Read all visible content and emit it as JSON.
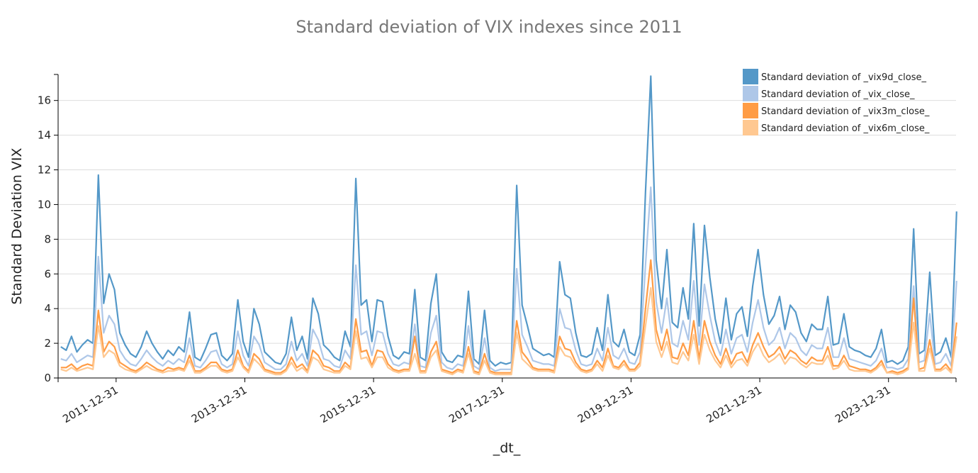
{
  "chart_data": {
    "type": "line",
    "title": "Standard deviation of VIX indexes since 2011",
    "xlabel": "_dt_",
    "ylabel": "Standard Deviation VIX",
    "x_start": "2011-01",
    "frequency": "monthly",
    "xlim_years": [
      2011.0,
      2024.95
    ],
    "ylim": [
      0,
      17.5
    ],
    "yticks": [
      0,
      2,
      4,
      6,
      8,
      10,
      12,
      14,
      16
    ],
    "xticks": [
      {
        "label": "2011-12-31",
        "year": 2012.0
      },
      {
        "label": "2013-12-31",
        "year": 2014.0
      },
      {
        "label": "2015-12-31",
        "year": 2016.0
      },
      {
        "label": "2017-12-31",
        "year": 2018.0
      },
      {
        "label": "2019-12-31",
        "year": 2020.0
      },
      {
        "label": "2021-12-31",
        "year": 2022.0
      },
      {
        "label": "2023-12-31",
        "year": 2024.0
      }
    ],
    "grid": true,
    "legend_position": "top-right",
    "series": [
      {
        "name": "Standard deviation of _vix9d_close_",
        "color": "#5498c8",
        "values": [
          1.8,
          1.6,
          2.4,
          1.5,
          1.9,
          2.2,
          2.0,
          11.7,
          4.3,
          6.0,
          5.1,
          2.6,
          1.9,
          1.4,
          1.2,
          1.8,
          2.7,
          2.0,
          1.5,
          1.1,
          1.6,
          1.3,
          1.8,
          1.5,
          3.8,
          1.2,
          1.0,
          1.7,
          2.5,
          2.6,
          1.3,
          1.0,
          1.4,
          4.5,
          2.1,
          1.2,
          4.0,
          3.1,
          1.5,
          1.2,
          0.9,
          0.8,
          1.4,
          3.5,
          1.6,
          2.4,
          1.1,
          4.6,
          3.7,
          1.9,
          1.6,
          1.2,
          1.0,
          2.7,
          1.8,
          11.5,
          4.2,
          4.5,
          2.1,
          4.5,
          4.4,
          2.4,
          1.3,
          1.1,
          1.5,
          1.4,
          5.1,
          1.2,
          1.0,
          4.3,
          6.0,
          1.5,
          1.0,
          0.9,
          1.3,
          1.2,
          5.0,
          1.1,
          0.8,
          3.9,
          1.0,
          0.7,
          0.9,
          0.8,
          0.9,
          11.1,
          4.2,
          3.0,
          1.7,
          1.5,
          1.3,
          1.4,
          1.2,
          6.7,
          4.8,
          4.6,
          2.6,
          1.3,
          1.2,
          1.4,
          2.9,
          1.6,
          4.8,
          2.1,
          1.8,
          2.8,
          1.5,
          1.3,
          2.5,
          10.7,
          17.4,
          6.8,
          4.0,
          7.4,
          3.2,
          2.9,
          5.2,
          3.4,
          8.9,
          3.0,
          8.8,
          5.8,
          3.4,
          2.0,
          4.6,
          2.2,
          3.7,
          4.1,
          2.4,
          5.3,
          7.4,
          4.8,
          3.1,
          3.6,
          4.7,
          2.8,
          4.2,
          3.8,
          2.6,
          2.1,
          3.1,
          2.8,
          2.8,
          4.7,
          1.9,
          2.0,
          3.7,
          1.8,
          1.6,
          1.5,
          1.3,
          1.2,
          1.7,
          2.8,
          0.9,
          1.0,
          0.8,
          1.0,
          1.8,
          8.6,
          1.4,
          1.6,
          6.1,
          1.3,
          1.5,
          2.3,
          1.2,
          9.6
        ]
      },
      {
        "name": "Standard deviation of _vix_close_",
        "color": "#aec7e8",
        "values": [
          1.1,
          1.0,
          1.4,
          0.9,
          1.1,
          1.3,
          1.2,
          7.0,
          2.6,
          3.6,
          3.1,
          1.6,
          1.1,
          0.8,
          0.7,
          1.1,
          1.6,
          1.2,
          0.9,
          0.7,
          1.0,
          0.8,
          1.1,
          0.9,
          2.3,
          0.7,
          0.6,
          1.0,
          1.5,
          1.6,
          0.8,
          0.6,
          0.8,
          2.7,
          1.3,
          0.7,
          2.4,
          1.9,
          0.9,
          0.7,
          0.5,
          0.5,
          0.8,
          2.1,
          1.0,
          1.4,
          0.7,
          2.8,
          2.2,
          1.1,
          1.0,
          0.7,
          0.6,
          1.6,
          1.1,
          6.5,
          2.5,
          2.7,
          1.3,
          2.7,
          2.6,
          1.4,
          0.8,
          0.7,
          0.9,
          0.8,
          3.1,
          0.7,
          0.6,
          2.6,
          3.6,
          0.9,
          0.6,
          0.5,
          0.8,
          0.7,
          3.0,
          0.7,
          0.5,
          2.3,
          0.6,
          0.4,
          0.5,
          0.5,
          0.5,
          6.3,
          2.5,
          1.8,
          1.0,
          0.9,
          0.8,
          0.8,
          0.7,
          4.0,
          2.9,
          2.8,
          1.6,
          0.8,
          0.7,
          0.8,
          1.7,
          1.0,
          2.9,
          1.3,
          1.1,
          1.7,
          0.9,
          0.8,
          1.5,
          6.5,
          11.0,
          4.4,
          2.6,
          4.6,
          2.0,
          1.8,
          3.3,
          2.2,
          5.6,
          1.9,
          5.4,
          3.6,
          2.1,
          1.3,
          2.8,
          1.4,
          2.3,
          2.5,
          1.5,
          3.2,
          4.5,
          2.9,
          1.9,
          2.2,
          2.9,
          1.7,
          2.6,
          2.3,
          1.6,
          1.3,
          1.9,
          1.7,
          1.7,
          2.9,
          1.2,
          1.2,
          2.3,
          1.1,
          1.0,
          0.9,
          0.8,
          0.7,
          1.0,
          1.7,
          0.6,
          0.6,
          0.5,
          0.6,
          1.1,
          5.3,
          0.9,
          1.0,
          3.7,
          0.8,
          0.9,
          1.4,
          0.7,
          5.6
        ]
      },
      {
        "name": "Standard deviation of _vix3m_close_",
        "color": "#ff9c45",
        "values": [
          0.6,
          0.6,
          0.8,
          0.5,
          0.7,
          0.8,
          0.7,
          3.9,
          1.5,
          2.1,
          1.8,
          0.9,
          0.7,
          0.5,
          0.4,
          0.6,
          0.9,
          0.7,
          0.5,
          0.4,
          0.6,
          0.5,
          0.6,
          0.5,
          1.3,
          0.4,
          0.4,
          0.6,
          0.9,
          0.9,
          0.5,
          0.4,
          0.5,
          1.6,
          0.7,
          0.4,
          1.4,
          1.1,
          0.5,
          0.4,
          0.3,
          0.3,
          0.5,
          1.2,
          0.6,
          0.8,
          0.4,
          1.6,
          1.3,
          0.7,
          0.6,
          0.4,
          0.4,
          0.9,
          0.6,
          3.4,
          1.5,
          1.6,
          0.7,
          1.6,
          1.5,
          0.8,
          0.5,
          0.4,
          0.5,
          0.5,
          2.4,
          0.4,
          0.4,
          1.5,
          2.1,
          0.5,
          0.4,
          0.3,
          0.5,
          0.4,
          1.8,
          0.4,
          0.3,
          1.4,
          0.4,
          0.3,
          0.3,
          0.3,
          0.3,
          3.3,
          1.5,
          1.1,
          0.6,
          0.5,
          0.5,
          0.5,
          0.4,
          2.4,
          1.7,
          1.6,
          0.9,
          0.5,
          0.4,
          0.5,
          1.0,
          0.6,
          1.7,
          0.7,
          0.6,
          1.0,
          0.5,
          0.5,
          0.9,
          4.0,
          6.8,
          2.8,
          1.6,
          2.8,
          1.2,
          1.1,
          2.0,
          1.3,
          3.3,
          1.1,
          3.3,
          2.1,
          1.3,
          0.8,
          1.7,
          0.8,
          1.4,
          1.5,
          0.9,
          1.9,
          2.6,
          1.8,
          1.2,
          1.4,
          1.8,
          1.1,
          1.6,
          1.4,
          1.0,
          0.8,
          1.2,
          1.0,
          1.0,
          1.8,
          0.7,
          0.7,
          1.3,
          0.7,
          0.6,
          0.5,
          0.5,
          0.4,
          0.6,
          1.0,
          0.3,
          0.4,
          0.3,
          0.4,
          0.6,
          4.6,
          0.5,
          0.6,
          2.2,
          0.5,
          0.5,
          0.8,
          0.4,
          3.2
        ]
      },
      {
        "name": "Standard deviation of _vix6m_close_",
        "color": "#ffc891",
        "values": [
          0.5,
          0.4,
          0.6,
          0.4,
          0.5,
          0.6,
          0.5,
          3.0,
          1.2,
          1.6,
          1.4,
          0.7,
          0.5,
          0.4,
          0.3,
          0.5,
          0.7,
          0.5,
          0.4,
          0.3,
          0.4,
          0.4,
          0.5,
          0.4,
          1.0,
          0.3,
          0.3,
          0.5,
          0.7,
          0.7,
          0.4,
          0.3,
          0.4,
          1.2,
          0.6,
          0.3,
          1.1,
          0.8,
          0.4,
          0.3,
          0.2,
          0.2,
          0.4,
          0.9,
          0.4,
          0.6,
          0.3,
          1.2,
          1.0,
          0.5,
          0.4,
          0.3,
          0.3,
          0.7,
          0.5,
          2.7,
          1.1,
          1.2,
          0.6,
          1.2,
          1.2,
          0.6,
          0.4,
          0.3,
          0.4,
          0.4,
          1.4,
          0.3,
          0.3,
          1.2,
          1.6,
          0.4,
          0.3,
          0.2,
          0.4,
          0.3,
          1.4,
          0.3,
          0.2,
          1.0,
          0.3,
          0.2,
          0.2,
          0.2,
          0.2,
          2.6,
          1.1,
          0.8,
          0.5,
          0.4,
          0.4,
          0.4,
          0.3,
          1.8,
          1.3,
          1.2,
          0.7,
          0.4,
          0.3,
          0.4,
          0.8,
          0.4,
          1.3,
          0.6,
          0.5,
          0.8,
          0.4,
          0.4,
          0.7,
          3.0,
          5.2,
          2.1,
          1.2,
          2.1,
          0.9,
          0.8,
          1.5,
          1.0,
          2.5,
          0.8,
          2.5,
          1.6,
          1.0,
          0.6,
          1.3,
          0.6,
          1.0,
          1.1,
          0.7,
          1.5,
          2.0,
          1.3,
          0.9,
          1.1,
          1.4,
          0.8,
          1.2,
          1.1,
          0.8,
          0.6,
          0.9,
          0.8,
          0.8,
          1.3,
          0.5,
          0.6,
          1.0,
          0.5,
          0.4,
          0.4,
          0.4,
          0.3,
          0.5,
          0.8,
          0.3,
          0.3,
          0.2,
          0.3,
          0.5,
          3.2,
          0.4,
          0.4,
          1.7,
          0.4,
          0.4,
          0.6,
          0.3,
          2.4
        ]
      }
    ]
  }
}
